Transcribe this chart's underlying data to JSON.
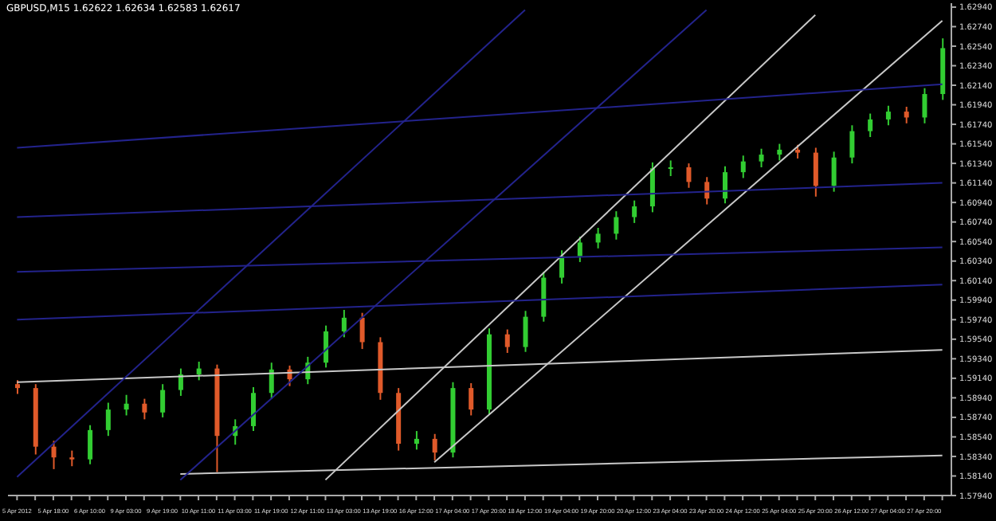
{
  "chart_data": {
    "type": "candlestick",
    "title": "GBPUSD,M15 1.62622 1.62634 1.62583 1.62617",
    "categories": [
      "5 Apr 2012",
      null,
      "5 Apr 18:00",
      null,
      "6 Apr 10:00",
      null,
      "9 Apr 03:00",
      null,
      "9 Apr 19:00",
      null,
      "10 Apr 11:00",
      null,
      "11 Apr 03:00",
      null,
      "11 Apr 19:00",
      null,
      "12 Apr 11:00",
      null,
      "13 Apr 03:00",
      null,
      "13 Apr 19:00",
      null,
      "16 Apr 12:00",
      null,
      "17 Apr 04:00",
      null,
      "17 Apr 20:00",
      null,
      "18 Apr 12:00",
      null,
      "19 Apr 04:00",
      null,
      "19 Apr 20:00",
      null,
      "20 Apr 12:00",
      null,
      "23 Apr 04:00",
      null,
      "23 Apr 20:00",
      null,
      "24 Apr 12:00",
      null,
      "25 Apr 04:00",
      null,
      "25 Apr 20:00",
      null,
      "26 Apr 12:00",
      null,
      "27 Apr 04:00",
      null,
      "27 Apr 20:00",
      null
    ],
    "ohlc": [
      [
        1.5908,
        1.5912,
        1.5898,
        1.5904
      ],
      [
        1.5904,
        1.5908,
        1.5836,
        1.5844
      ],
      [
        1.5844,
        1.585,
        1.5821,
        1.5833
      ],
      [
        1.5833,
        1.584,
        1.5824,
        1.5831
      ],
      [
        1.5831,
        1.5866,
        1.5826,
        1.5861
      ],
      [
        1.5861,
        1.5889,
        1.5855,
        1.5882
      ],
      [
        1.5882,
        1.5897,
        1.5876,
        1.5888
      ],
      [
        1.5888,
        1.5893,
        1.5872,
        1.5879
      ],
      [
        1.5879,
        1.5908,
        1.5874,
        1.5902
      ],
      [
        1.5902,
        1.5924,
        1.5896,
        1.5918
      ],
      [
        1.5918,
        1.5931,
        1.5912,
        1.5924
      ],
      [
        1.5924,
        1.5928,
        1.5818,
        1.5855
      ],
      [
        1.5855,
        1.5872,
        1.5846,
        1.5865
      ],
      [
        1.5865,
        1.5905,
        1.586,
        1.5899
      ],
      [
        1.5899,
        1.593,
        1.5893,
        1.5923
      ],
      [
        1.5923,
        1.5927,
        1.5906,
        1.5913
      ],
      [
        1.5913,
        1.5936,
        1.5908,
        1.593
      ],
      [
        1.593,
        1.5968,
        1.5925,
        1.5962
      ],
      [
        1.5962,
        1.5984,
        1.5956,
        1.5976
      ],
      [
        1.5976,
        1.5981,
        1.5944,
        1.5951
      ],
      [
        1.5951,
        1.5956,
        1.5892,
        1.5899
      ],
      [
        1.5899,
        1.5904,
        1.584,
        1.5847
      ],
      [
        1.5847,
        1.586,
        1.5841,
        1.5852
      ],
      [
        1.5852,
        1.5857,
        1.583,
        1.5838
      ],
      [
        1.5838,
        1.591,
        1.5833,
        1.5904
      ],
      [
        1.5904,
        1.5909,
        1.5876,
        1.5882
      ],
      [
        1.5882,
        1.5965,
        1.5877,
        1.5959
      ],
      [
        1.5959,
        1.5964,
        1.594,
        1.5946
      ],
      [
        1.5946,
        1.5983,
        1.5941,
        1.5977
      ],
      [
        1.5977,
        1.6023,
        1.5972,
        1.6017
      ],
      [
        1.6017,
        1.6045,
        1.6011,
        1.6039
      ],
      [
        1.6039,
        1.6059,
        1.6033,
        1.6053
      ],
      [
        1.6053,
        1.6068,
        1.6047,
        1.6062
      ],
      [
        1.6062,
        1.6085,
        1.6056,
        1.6079
      ],
      [
        1.6079,
        1.6096,
        1.6073,
        1.609
      ],
      [
        1.609,
        1.6135,
        1.6084,
        1.6129
      ],
      [
        1.6129,
        1.6137,
        1.6121,
        1.613
      ],
      [
        1.613,
        1.6134,
        1.6109,
        1.6115
      ],
      [
        1.6115,
        1.612,
        1.6092,
        1.6098
      ],
      [
        1.6098,
        1.6131,
        1.6093,
        1.6125
      ],
      [
        1.6125,
        1.6142,
        1.6119,
        1.6136
      ],
      [
        1.6136,
        1.6149,
        1.613,
        1.6143
      ],
      [
        1.6143,
        1.6154,
        1.6137,
        1.6148
      ],
      [
        1.6148,
        1.6153,
        1.6139,
        1.6145
      ],
      [
        1.6145,
        1.615,
        1.61,
        1.6111
      ],
      [
        1.6111,
        1.6146,
        1.6105,
        1.614
      ],
      [
        1.614,
        1.6173,
        1.6134,
        1.6167
      ],
      [
        1.6167,
        1.6185,
        1.6161,
        1.6179
      ],
      [
        1.6179,
        1.6193,
        1.6173,
        1.6187
      ],
      [
        1.6187,
        1.6192,
        1.6175,
        1.6181
      ],
      [
        1.6181,
        1.6211,
        1.6175,
        1.6205
      ],
      [
        1.6205,
        1.6262,
        1.6199,
        1.6252
      ]
    ],
    "colors": [
      "#e05a2a",
      "#e05a2a",
      "#e05a2a",
      "#e05a2a",
      "#32cd32",
      "#32cd32",
      "#32cd32",
      "#e05a2a",
      "#32cd32",
      "#32cd32",
      "#32cd32",
      "#e05a2a",
      "#32cd32",
      "#32cd32",
      "#32cd32",
      "#e05a2a",
      "#32cd32",
      "#32cd32",
      "#32cd32",
      "#e05a2a",
      "#e05a2a",
      "#e05a2a",
      "#32cd32",
      "#e05a2a",
      "#32cd32",
      "#e05a2a",
      "#32cd32",
      "#e05a2a",
      "#32cd32",
      "#32cd32",
      "#32cd32",
      "#32cd32",
      "#32cd32",
      "#32cd32",
      "#32cd32",
      "#32cd32",
      "#32cd32",
      "#e05a2a",
      "#e05a2a",
      "#32cd32",
      "#32cd32",
      "#32cd32",
      "#32cd32",
      "#e05a2a",
      "#e05a2a",
      "#32cd32",
      "#32cd32",
      "#32cd32",
      "#32cd32",
      "#e05a2a",
      "#32cd32",
      "#32cd32"
    ],
    "series": [
      {
        "type": "line",
        "color": "#c8c8c8",
        "values": [
          1.591,
          null,
          null,
          null,
          null,
          null,
          null,
          null,
          null,
          null,
          null,
          null,
          null,
          null,
          null,
          null,
          null,
          null,
          null,
          null,
          null,
          null,
          null,
          null,
          null,
          null,
          null,
          null,
          null,
          null,
          null,
          null,
          null,
          null,
          null,
          null,
          null,
          null,
          null,
          null,
          null,
          null,
          null,
          null,
          null,
          null,
          null,
          null,
          null,
          null,
          null,
          1.5943
        ]
      },
      {
        "type": "line",
        "color": "#c8c8c8",
        "values": [
          null,
          null,
          null,
          null,
          null,
          null,
          null,
          null,
          null,
          1.5816,
          null,
          null,
          null,
          null,
          null,
          null,
          null,
          null,
          null,
          null,
          null,
          null,
          null,
          null,
          null,
          null,
          null,
          null,
          null,
          null,
          null,
          null,
          null,
          null,
          null,
          null,
          null,
          null,
          null,
          null,
          null,
          null,
          null,
          null,
          null,
          null,
          null,
          null,
          null,
          null,
          null,
          1.5835
        ]
      },
      {
        "type": "line",
        "color": "#c8c8c8",
        "values": [
          null,
          null,
          null,
          null,
          null,
          null,
          null,
          null,
          null,
          null,
          null,
          null,
          null,
          null,
          null,
          null,
          null,
          1.581,
          null,
          null,
          null,
          null,
          null,
          null,
          null,
          null,
          null,
          null,
          null,
          null,
          null,
          null,
          null,
          null,
          null,
          null,
          null,
          null,
          null,
          null,
          null,
          null,
          null,
          null,
          1.6286,
          null,
          null,
          null,
          null,
          null,
          null,
          null
        ]
      },
      {
        "type": "line",
        "color": "#c8c8c8",
        "values": [
          null,
          null,
          null,
          null,
          null,
          null,
          null,
          null,
          null,
          null,
          null,
          null,
          null,
          null,
          null,
          null,
          null,
          null,
          null,
          null,
          null,
          null,
          null,
          1.5828,
          null,
          null,
          null,
          null,
          null,
          null,
          null,
          null,
          null,
          null,
          null,
          null,
          null,
          null,
          null,
          null,
          null,
          null,
          null,
          null,
          null,
          null,
          null,
          null,
          null,
          null,
          null,
          1.628
        ]
      },
      {
        "type": "line",
        "color": "#23238c",
        "values": [
          1.615,
          null,
          null,
          null,
          null,
          null,
          null,
          null,
          null,
          null,
          null,
          null,
          null,
          null,
          null,
          null,
          null,
          null,
          null,
          null,
          null,
          null,
          null,
          null,
          null,
          null,
          null,
          null,
          null,
          null,
          null,
          null,
          null,
          null,
          null,
          null,
          null,
          null,
          null,
          null,
          null,
          null,
          null,
          null,
          null,
          null,
          null,
          null,
          null,
          null,
          null,
          1.6215
        ]
      },
      {
        "type": "line",
        "color": "#23238c",
        "values": [
          1.6079,
          null,
          null,
          null,
          null,
          null,
          null,
          null,
          null,
          null,
          null,
          null,
          null,
          null,
          null,
          null,
          null,
          null,
          null,
          null,
          null,
          null,
          null,
          null,
          null,
          null,
          null,
          null,
          null,
          null,
          null,
          null,
          null,
          null,
          null,
          null,
          null,
          null,
          null,
          null,
          null,
          null,
          null,
          null,
          null,
          null,
          null,
          null,
          null,
          null,
          null,
          1.6114
        ]
      },
      {
        "type": "line",
        "color": "#23238c",
        "values": [
          1.6023,
          null,
          null,
          null,
          null,
          null,
          null,
          null,
          null,
          null,
          null,
          null,
          null,
          null,
          null,
          null,
          null,
          null,
          null,
          null,
          null,
          null,
          null,
          null,
          null,
          null,
          null,
          null,
          null,
          null,
          null,
          null,
          null,
          null,
          null,
          null,
          null,
          null,
          null,
          null,
          null,
          null,
          null,
          null,
          null,
          null,
          null,
          null,
          null,
          null,
          null,
          1.6048
        ]
      },
      {
        "type": "line",
        "color": "#23238c",
        "values": [
          1.5974,
          null,
          null,
          null,
          null,
          null,
          null,
          null,
          null,
          null,
          null,
          null,
          null,
          null,
          null,
          null,
          null,
          null,
          null,
          null,
          null,
          null,
          null,
          null,
          null,
          null,
          null,
          null,
          null,
          null,
          null,
          null,
          null,
          null,
          null,
          null,
          null,
          null,
          null,
          null,
          null,
          null,
          null,
          null,
          null,
          null,
          null,
          null,
          null,
          null,
          null,
          1.601
        ]
      },
      {
        "type": "line",
        "color": "#23238c",
        "values": [
          1.5813,
          null,
          null,
          null,
          null,
          null,
          null,
          null,
          null,
          null,
          null,
          null,
          null,
          null,
          null,
          null,
          null,
          null,
          null,
          null,
          null,
          null,
          null,
          null,
          null,
          null,
          null,
          null,
          1.6291,
          null,
          null,
          null,
          null,
          null,
          null,
          null,
          null,
          null,
          null,
          null,
          null,
          null,
          null,
          null,
          null,
          null,
          null,
          null,
          null,
          null,
          null,
          null
        ]
      },
      {
        "type": "line",
        "color": "#23238c",
        "values": [
          null,
          null,
          null,
          null,
          null,
          null,
          null,
          null,
          null,
          1.581,
          null,
          null,
          null,
          null,
          null,
          null,
          null,
          null,
          null,
          null,
          null,
          null,
          null,
          null,
          null,
          null,
          null,
          null,
          null,
          null,
          null,
          null,
          null,
          null,
          null,
          null,
          null,
          null,
          1.6291,
          null,
          null,
          null,
          null,
          null,
          null,
          null,
          null,
          null,
          null,
          null,
          null,
          null
        ]
      }
    ],
    "ylim": [
      1.5794,
      1.6298
    ],
    "yticks": [
      {
        "value": 1.5794,
        "label": "1.57940"
      },
      {
        "value": 1.5814,
        "label": "1.58140"
      },
      {
        "value": 1.5834,
        "label": "1.58340"
      },
      {
        "value": 1.5854,
        "label": "1.58540"
      },
      {
        "value": 1.5874,
        "label": "1.58740"
      },
      {
        "value": 1.5894,
        "label": "1.58940"
      },
      {
        "value": 1.5914,
        "label": "1.59140"
      },
      {
        "value": 1.5934,
        "label": "1.59340"
      },
      {
        "value": 1.5954,
        "label": "1.59540"
      },
      {
        "value": 1.5974,
        "label": "1.59740"
      },
      {
        "value": 1.5994,
        "label": "1.59940"
      },
      {
        "value": 1.6014,
        "label": "1.60140"
      },
      {
        "value": 1.6034,
        "label": "1.60340"
      },
      {
        "value": 1.6054,
        "label": "1.60540"
      },
      {
        "value": 1.6074,
        "label": "1.60740"
      },
      {
        "value": 1.6094,
        "label": "1.60940"
      },
      {
        "value": 1.6114,
        "label": "1.61140"
      },
      {
        "value": 1.6134,
        "label": "1.61340"
      },
      {
        "value": 1.6154,
        "label": "1.61540"
      },
      {
        "value": 1.6174,
        "label": "1.61740"
      },
      {
        "value": 1.6194,
        "label": "1.61940"
      },
      {
        "value": 1.6214,
        "label": "1.62140"
      },
      {
        "value": 1.6234,
        "label": "1.62340"
      },
      {
        "value": 1.6254,
        "label": "1.62540"
      },
      {
        "value": 1.6274,
        "label": "1.62740"
      },
      {
        "value": 1.6294,
        "label": "1.62940"
      }
    ],
    "grid": false,
    "legend": false
  }
}
